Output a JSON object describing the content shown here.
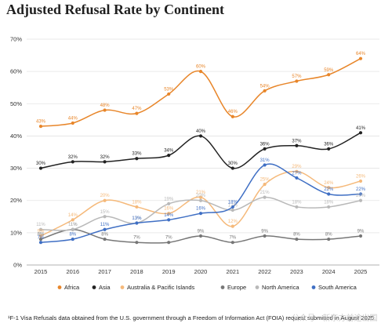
{
  "chart_data": {
    "type": "line",
    "title": "Adjusted Refusal Rate by Continent",
    "xlabel": "",
    "ylabel": "",
    "x": [
      "2015",
      "2016",
      "2017",
      "2018",
      "2019",
      "2020",
      "2021",
      "2022",
      "2023",
      "2024",
      "2025"
    ],
    "ylim": [
      0,
      70
    ],
    "yticks": [
      "0%",
      "10%",
      "20%",
      "30%",
      "40%",
      "50%",
      "60%",
      "70%"
    ],
    "grid": true,
    "legend_position": "bottom",
    "series": [
      {
        "name": "Africa",
        "color": "#e8862a",
        "values": [
          43,
          44,
          48,
          47,
          53,
          60,
          46,
          54,
          57,
          59,
          64
        ]
      },
      {
        "name": "Asia",
        "color": "#222222",
        "values": [
          30,
          32,
          32,
          33,
          34,
          40,
          30,
          36,
          37,
          36,
          41
        ]
      },
      {
        "name": "Australia & Pacific Islands",
        "color": "#f5b97a",
        "values": [
          9,
          14,
          20,
          18,
          16,
          21,
          12,
          25,
          29,
          24,
          26
        ]
      },
      {
        "name": "Europe",
        "color": "#777777",
        "values": [
          8,
          11,
          8,
          7,
          7,
          9,
          7,
          9,
          8,
          8,
          9
        ]
      },
      {
        "name": "North America",
        "color": "#b9b9b9",
        "values": [
          11,
          11,
          15,
          13,
          19,
          20,
          17,
          21,
          18,
          18,
          20
        ]
      },
      {
        "name": "South America",
        "color": "#3f6fc4",
        "values": [
          7,
          8,
          11,
          13,
          14,
          16,
          18,
          31,
          27,
          22,
          22
        ]
      }
    ]
  },
  "footnote": "¹F-1 Visa Refusals data obtained from the U.S. government through a Freedom of Information Act (FOIA) request submitted in August 2025",
  "watermark": "公众号 · 新东方前途出国"
}
